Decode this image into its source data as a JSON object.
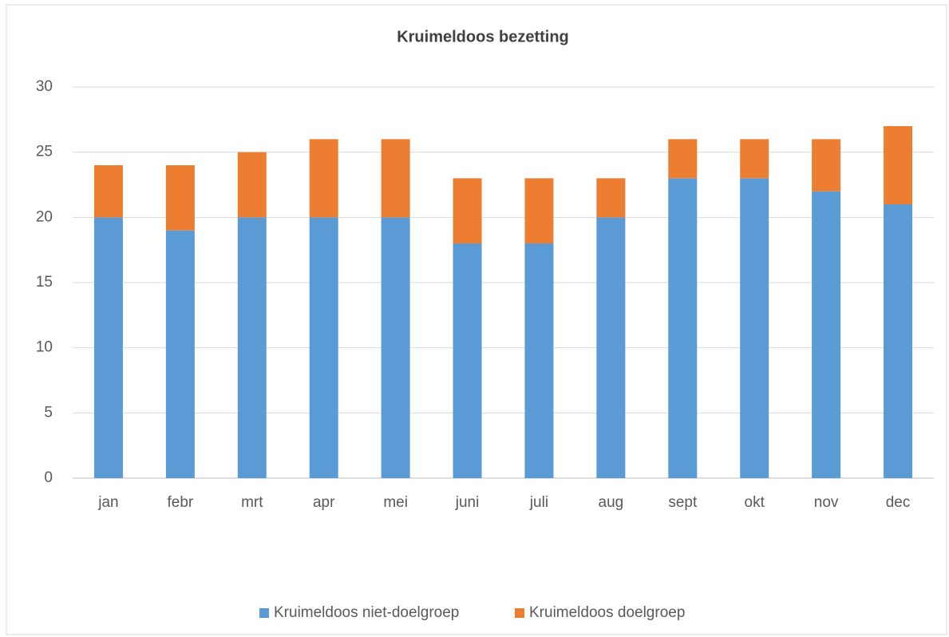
{
  "chart_data": {
    "type": "bar",
    "stacked": true,
    "title": "Kruimeldoos bezetting",
    "categories": [
      "jan",
      "febr",
      "mrt",
      "apr",
      "mei",
      "juni",
      "juli",
      "aug",
      "sept",
      "okt",
      "nov",
      "dec"
    ],
    "series": [
      {
        "name": "Kruimeldoos niet-doelgroep",
        "color": "#5b9bd5",
        "values": [
          20,
          19,
          20,
          20,
          20,
          18,
          18,
          20,
          23,
          23,
          22,
          21
        ]
      },
      {
        "name": "Kruimeldoos doelgroep",
        "color": "#ed7d31",
        "values": [
          4,
          5,
          5,
          6,
          6,
          5,
          5,
          3,
          3,
          3,
          4,
          6
        ]
      }
    ],
    "ylim": [
      0,
      30
    ],
    "yticks": [
      0,
      5,
      10,
      15,
      20,
      25,
      30
    ],
    "grid": true,
    "legend": "bottom"
  }
}
